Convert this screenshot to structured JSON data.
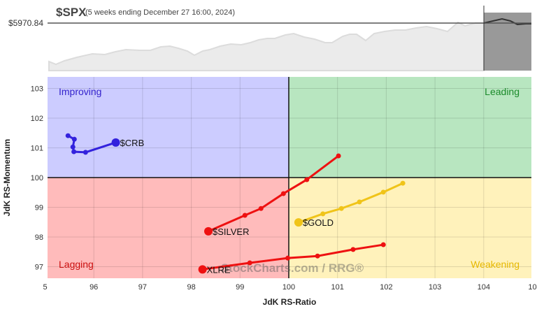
{
  "header": {
    "symbol": "$SPX",
    "subtitle": "(5 weeks ending December 27 16:00, 2024)",
    "price_label": "$5970.84"
  },
  "watermark": "StockCharts.com / RRG®",
  "chart_data": {
    "type": "scatter",
    "xlabel": "JdK RS-Ratio",
    "ylabel": "JdK RS-Momentum",
    "xlim": [
      95,
      105
    ],
    "ylim": [
      96.6,
      103.4
    ],
    "xticks": [
      "5",
      "96",
      "97",
      "98",
      "99",
      "100",
      "101",
      "102",
      "103",
      "104",
      "10"
    ],
    "yticks": [
      "97",
      "98",
      "99",
      "100",
      "101",
      "102",
      "103"
    ],
    "grid": true,
    "quadrants": [
      {
        "name": "Improving",
        "color": "#ccccff",
        "label_color": "#3322cc"
      },
      {
        "name": "Leading",
        "color": "#b8e6c0",
        "label_color": "#1a8a2a"
      },
      {
        "name": "Lagging",
        "color": "#ffbbbb",
        "label_color": "#cc1111"
      },
      {
        "name": "Weakening",
        "color": "#fff2bb",
        "label_color": "#e6b800"
      }
    ],
    "series": [
      {
        "name": "$CRB",
        "color": "#3322dd",
        "x": [
          95.47,
          95.6,
          95.57,
          95.59,
          95.83,
          96.45
        ],
        "y": [
          101.41,
          101.29,
          101.03,
          100.87,
          100.85,
          101.18
        ]
      },
      {
        "name": "$SILVER",
        "color": "#ee1111",
        "x": [
          101.02,
          100.37,
          99.89,
          99.43,
          99.1,
          98.35
        ],
        "y": [
          100.73,
          99.93,
          99.46,
          98.96,
          98.73,
          98.19
        ]
      },
      {
        "name": "$GOLD",
        "color": "#f0c419",
        "x": [
          102.34,
          101.94,
          101.45,
          101.08,
          100.7,
          100.2
        ],
        "y": [
          99.81,
          99.51,
          99.18,
          98.96,
          98.78,
          98.49
        ]
      },
      {
        "name": "XLRE",
        "color": "#ee1111",
        "x": [
          101.94,
          101.32,
          100.59,
          99.98,
          99.2,
          98.23
        ],
        "y": [
          97.74,
          97.58,
          97.36,
          97.29,
          97.13,
          96.91
        ]
      }
    ]
  }
}
